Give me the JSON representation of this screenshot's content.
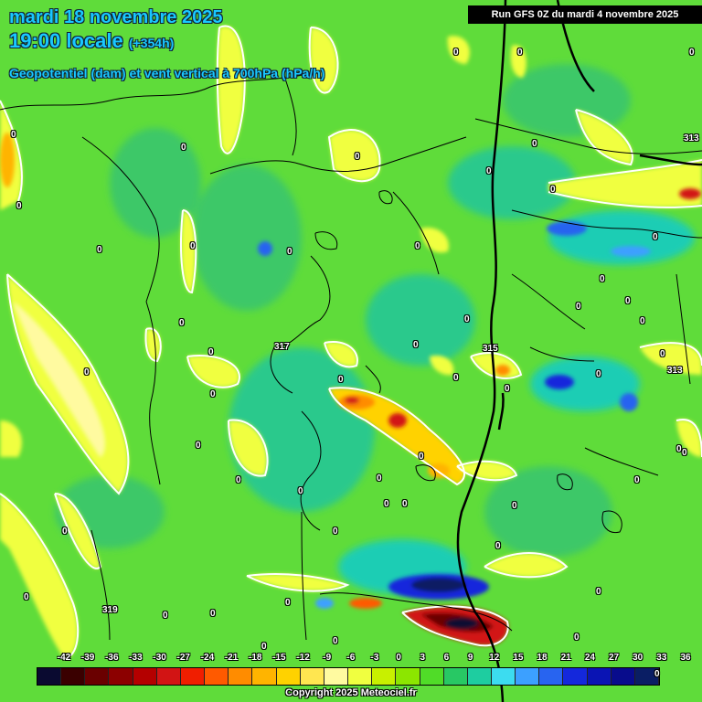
{
  "header": {
    "date_line": "mardi 18 novembre 2025",
    "time_main": "19:00 locale",
    "lead_time": "(+354h)",
    "field_title": "Geopotentiel (dam) et vent vertical à 700hPa (hPa/h)"
  },
  "run_info": "Run GFS 0Z du mardi 4 novembre 2025",
  "copyright": "Copyright 2025 Meteociel.fr",
  "legend": {
    "ticks": [
      "-42",
      "-39",
      "-36",
      "-33",
      "-30",
      "-27",
      "-24",
      "-21",
      "-18",
      "-15",
      "-12",
      "-9",
      "-6",
      "-3",
      "0",
      "3",
      "6",
      "9",
      "12",
      "15",
      "18",
      "21",
      "24",
      "27",
      "30",
      "33",
      "36"
    ],
    "colors": [
      "#0a0a30",
      "#3a0000",
      "#6a0000",
      "#8c0000",
      "#b40000",
      "#d21414",
      "#f01e00",
      "#ff5a00",
      "#ff8c00",
      "#ffb400",
      "#ffd200",
      "#ffe650",
      "#fffaa0",
      "#f0ff40",
      "#c8f000",
      "#8ce600",
      "#50dc28",
      "#28c864",
      "#1ecda0",
      "#3cdcf0",
      "#3ca0ff",
      "#2864f0",
      "#1428dc",
      "#0a14b4",
      "#080c8c",
      "#0a1e64"
    ],
    "end_label": "0"
  },
  "geopotential_labels": [
    "313",
    "317",
    "315",
    "313",
    "319"
  ],
  "zero_contour_labels": [
    "0",
    "0",
    "0",
    "0",
    "0",
    "0",
    "0",
    "0",
    "0",
    "0",
    "0",
    "0",
    "0",
    "0",
    "0",
    "0",
    "0",
    "0",
    "0",
    "0",
    "0",
    "0",
    "0",
    "0",
    "0",
    "0",
    "0",
    "0",
    "0",
    "0",
    "0",
    "0",
    "0",
    "0",
    "0",
    "0",
    "0",
    "0",
    "0",
    "0",
    "0",
    "0",
    "0",
    "0",
    "0",
    "0",
    "0",
    "0",
    "0",
    "0",
    "0",
    "0"
  ]
}
